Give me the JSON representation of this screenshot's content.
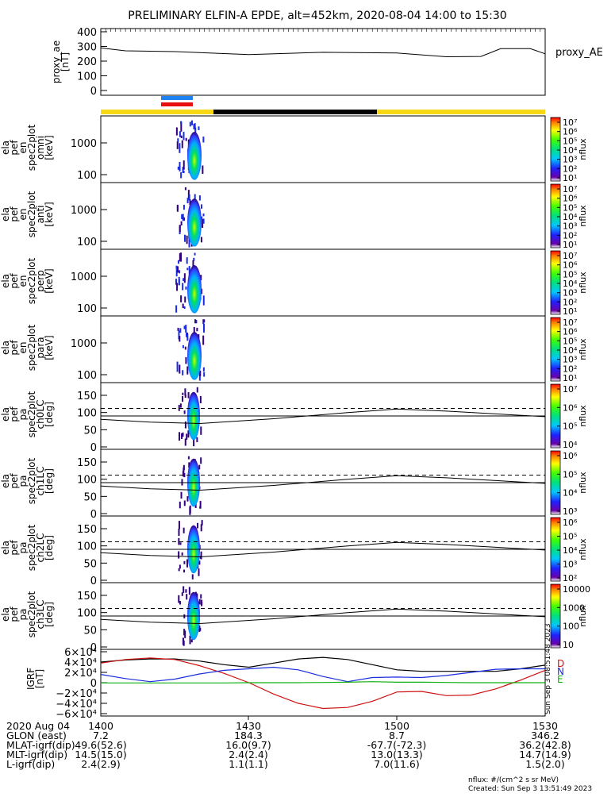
{
  "title": "PRELIMINARY ELFIN-A EPDE, alt=452km, 2020-08-04 14:00 to 15:30",
  "proxy_ae": {
    "label": "proxy_AE",
    "ylabel_lines": [
      "proxy_ae",
      "[nT]"
    ],
    "yticks": [
      "400",
      "300",
      "200",
      "100",
      "0"
    ],
    "ylim": [
      0,
      400
    ]
  },
  "spec_panels": [
    {
      "ylabel_lines": [
        "ela",
        "pef",
        "en",
        "spec2plot",
        "omni",
        "[keV]"
      ],
      "yticks": [
        "1000",
        "100"
      ],
      "cb_ticks": [
        "10⁷",
        "10⁶",
        "10⁵",
        "10⁴",
        "10³",
        "10²",
        "10¹"
      ],
      "cb_label": "nflux"
    },
    {
      "ylabel_lines": [
        "ela",
        "pef",
        "en",
        "spec2plot",
        "anti",
        "[keV]"
      ],
      "yticks": [
        "1000",
        "100"
      ],
      "cb_ticks": [
        "10⁷",
        "10⁶",
        "10⁵",
        "10⁴",
        "10³",
        "10²",
        "10¹"
      ],
      "cb_label": "nflux"
    },
    {
      "ylabel_lines": [
        "ela",
        "pef",
        "en",
        "spec2plot",
        "perp",
        "[keV]"
      ],
      "yticks": [
        "1000",
        "100"
      ],
      "cb_ticks": [
        "10⁷",
        "10⁶",
        "10⁵",
        "10⁴",
        "10³",
        "10²",
        "10¹"
      ],
      "cb_label": "nflux"
    },
    {
      "ylabel_lines": [
        "ela",
        "pef",
        "en",
        "spec2plot",
        "para",
        "[keV]"
      ],
      "yticks": [
        "1000",
        "100"
      ],
      "cb_ticks": [
        "10⁷",
        "10⁶",
        "10⁵",
        "10⁴",
        "10³",
        "10²",
        "10¹"
      ],
      "cb_label": "nflux"
    }
  ],
  "pa_panels": [
    {
      "ylabel_lines": [
        "ela",
        "pef",
        "pa",
        "spec2plot",
        "ch0LC",
        "[deg]"
      ],
      "yticks": [
        "150",
        "100",
        "50",
        "0"
      ],
      "cb_ticks": [
        "10⁷",
        "10⁶",
        "10⁵",
        "10⁴"
      ],
      "cb_label": "nflux"
    },
    {
      "ylabel_lines": [
        "ela",
        "pef",
        "pa",
        "spec2plot",
        "ch1LC",
        "[deg]"
      ],
      "yticks": [
        "150",
        "100",
        "50",
        "0"
      ],
      "cb_ticks": [
        "10⁶",
        "10⁵",
        "10⁴",
        "10³"
      ],
      "cb_label": "nflux"
    },
    {
      "ylabel_lines": [
        "ela",
        "pef",
        "pa",
        "spec2plot",
        "ch2LC",
        "[deg]"
      ],
      "yticks": [
        "150",
        "100",
        "50",
        "0"
      ],
      "cb_ticks": [
        "10⁶",
        "10⁵",
        "10⁴",
        "10³",
        "10²"
      ],
      "cb_label": "nflux"
    },
    {
      "ylabel_lines": [
        "ela",
        "pef",
        "pa",
        "spec2plot",
        "ch3LC",
        "[deg]"
      ],
      "yticks": [
        "150",
        "100",
        "50",
        "0"
      ],
      "cb_ticks": [
        "10000",
        "1000",
        "100",
        "10"
      ],
      "cb_label": "nflux"
    }
  ],
  "igrf": {
    "ylabel_lines": [
      "IGRF",
      "[nT]"
    ],
    "yticks": [
      "6×10⁴",
      "4×10⁴",
      "2×10⁴",
      "0",
      "−2×10⁴",
      "−4×10⁴",
      "−6×10⁴"
    ],
    "ylim": [
      -60000,
      60000
    ],
    "legend": [
      "D",
      "N",
      "E"
    ],
    "side_text": "Sun Sep  3 08:51:48 2023"
  },
  "footer": {
    "rows": [
      {
        "label": "2020 Aug 04",
        "values": [
          "1400",
          "1430",
          "1500",
          "1530"
        ]
      },
      {
        "label": "GLON (east)",
        "values": [
          "7.2",
          "184.3",
          "8.7",
          "346.2"
        ]
      },
      {
        "label": "MLAT-igrf(dip)",
        "values": [
          "49.6(52.6)",
          "16.0(9.7)",
          "-67.7(-72.3)",
          "36.2(42.8)"
        ]
      },
      {
        "label": "MLT-igrf(dip)",
        "values": [
          "14.5(15.0)",
          "2.4(2.4)",
          "13.0(13.3)",
          "14.7(14.9)"
        ]
      },
      {
        "label": "L-igrf(dip)",
        "values": [
          "2.4(2.9)",
          "1.1(1.1)",
          "7.0(11.6)",
          "1.5(2.0)"
        ]
      }
    ],
    "units": "nflux: #/(cm^2 s sr MeV)",
    "created": "Created: Sun Sep  3 13:51:49 2023"
  },
  "colors": {
    "bar_yellow": "#f8d814",
    "bar_black": "#000000",
    "marker_blue": "#1e82f0",
    "marker_red": "#e81010",
    "igrf_black": "#000000",
    "igrf_blue": "#1a2de0",
    "igrf_red": "#d01010",
    "igrf_green": "#10b010"
  },
  "chart_data": [
    {
      "type": "line",
      "name": "proxy_AE",
      "x_minutes": [
        0,
        5,
        15,
        30,
        45,
        60,
        70,
        77,
        81,
        87,
        90
      ],
      "values": [
        290,
        270,
        265,
        245,
        260,
        255,
        230,
        232,
        285,
        285,
        250
      ],
      "ylim": [
        0,
        400
      ]
    },
    {
      "type": "heatmap",
      "panels": [
        "omni",
        "anti",
        "perp",
        "para"
      ],
      "ylabel": "[keV]",
      "burst_minutes": [
        13,
        18
      ]
    },
    {
      "type": "heatmap",
      "panels": [
        "ch0LC",
        "ch1LC",
        "ch2LC",
        "ch3LC"
      ],
      "ylabel": "[deg]",
      "ylim": [
        0,
        180
      ]
    },
    {
      "type": "line",
      "name": "IGRF",
      "ylim": [
        -60000,
        60000
      ],
      "x_minutes": [
        0,
        5,
        10,
        15,
        20,
        25,
        30,
        35,
        40,
        45,
        50,
        55,
        60,
        65,
        70,
        75,
        80,
        85,
        90
      ],
      "series": [
        {
          "name": "total",
          "values": [
            40000,
            44000,
            46000,
            46000,
            42000,
            35000,
            30000,
            38000,
            46000,
            49000,
            45000,
            35000,
            25000,
            22000,
            22000,
            22000,
            22000,
            27000,
            34000
          ]
        },
        {
          "name": "D",
          "values": [
            38000,
            45000,
            48000,
            45000,
            33000,
            18000,
            0,
            -22000,
            -40000,
            -50000,
            -48000,
            -36000,
            -18000,
            -17000,
            -25000,
            -24000,
            -12000,
            5000,
            24000
          ]
        },
        {
          "name": "N",
          "values": [
            16000,
            8000,
            2000,
            7000,
            17000,
            24000,
            27000,
            30000,
            25000,
            12000,
            2000,
            10000,
            11000,
            10000,
            14000,
            20000,
            26000,
            27000,
            27000
          ]
        },
        {
          "name": "E",
          "values": [
            -500,
            -500,
            -500,
            -500,
            -500,
            -500,
            0,
            0,
            0,
            500,
            1000,
            2000,
            1000,
            1000,
            500,
            0,
            0,
            0,
            0
          ]
        }
      ]
    }
  ]
}
